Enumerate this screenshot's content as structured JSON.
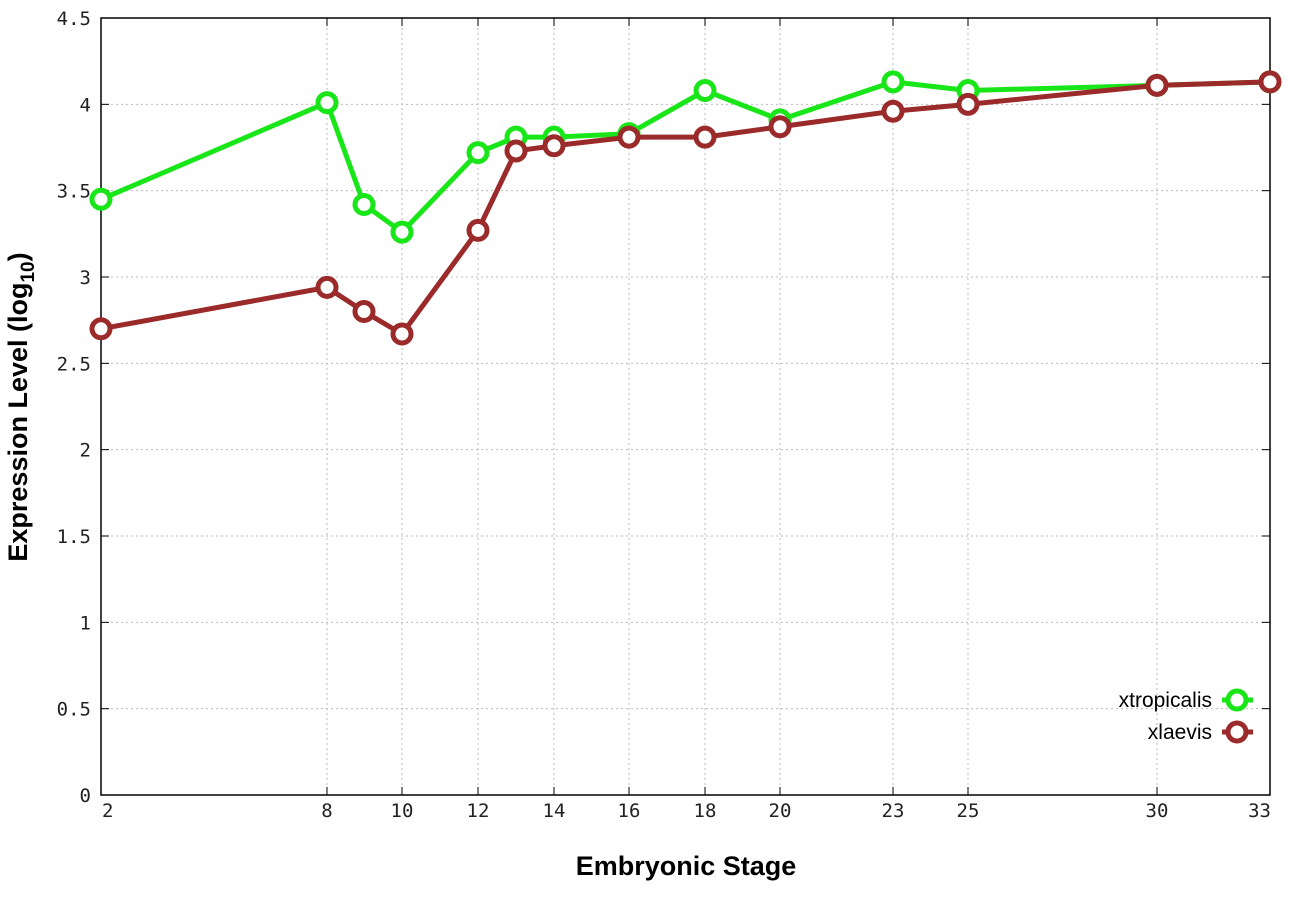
{
  "chart_data": {
    "type": "line",
    "xlabel": "Embryonic Stage",
    "ylabel_main": "Expression Level (log",
    "ylabel_sub": "10",
    "ylabel_close": ")",
    "x_ticks": [
      "2",
      "8",
      "10",
      "12",
      "14",
      "16",
      "18",
      "20",
      "23",
      "25",
      "30",
      "33"
    ],
    "y_ticks": [
      "0",
      "0.5",
      "1",
      "1.5",
      "2",
      "2.5",
      "3",
      "3.5",
      "4",
      "4.5"
    ],
    "ylim": [
      0,
      4.5
    ],
    "grid": true,
    "legend_position": "bottom-right",
    "x_stages": [
      "2",
      "8",
      "9",
      "10",
      "12",
      "13",
      "14",
      "16",
      "18",
      "20",
      "23",
      "25",
      "30",
      "33"
    ],
    "series": [
      {
        "name": "xtropicalis",
        "color": "#19e619",
        "values": [
          3.45,
          4.01,
          3.42,
          3.26,
          3.72,
          3.81,
          3.81,
          3.83,
          4.08,
          3.91,
          4.13,
          4.08,
          4.11,
          4.13
        ]
      },
      {
        "name": "xlaevis",
        "color": "#9b2a2a",
        "values": [
          2.7,
          2.94,
          2.8,
          2.67,
          3.27,
          3.73,
          3.76,
          3.81,
          3.81,
          3.87,
          3.96,
          4.0,
          4.11,
          4.13
        ]
      }
    ]
  }
}
